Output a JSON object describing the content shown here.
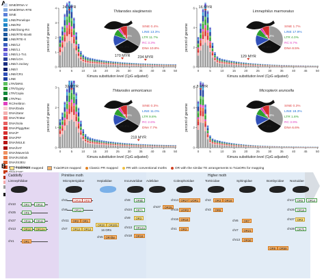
{
  "panel_a": {
    "letter": "A",
    "legend": [
      {
        "label": "SINE/tRNA-V",
        "color": "#c8d8f0"
      },
      {
        "label": "SINE/tRNA-RTE",
        "color": "#7fa8e0"
      },
      {
        "label": "SINE",
        "color": "#5b7fd8"
      },
      {
        "label": "LINE/Penelope",
        "color": "#3aa0d8"
      },
      {
        "label": "LINE/R2",
        "color": "#1d86c8"
      },
      {
        "label": "LINE/Dong-R4",
        "color": "#2a6eb0"
      },
      {
        "label": "LINE/RTE-BovB",
        "color": "#1e5aa0"
      },
      {
        "label": "LINE/RTE-X",
        "color": "#0f4a8c"
      },
      {
        "label": "LINE/L2",
        "color": "#3c5fc0"
      },
      {
        "label": "LINE/L1",
        "color": "#5c4cc8"
      },
      {
        "label": "LINE/L1-Tx1",
        "color": "#6e6ee0"
      },
      {
        "label": "LINE/LOA",
        "color": "#2b3f99"
      },
      {
        "label": "LINE/I-Jockey",
        "color": "#1a2e80"
      },
      {
        "label": "LINE/I",
        "color": "#101e6a"
      },
      {
        "label": "LINE/CR1",
        "color": "#3050b8"
      },
      {
        "label": "LINE",
        "color": "#2040a0"
      },
      {
        "label": "LTR/DIRS",
        "color": "#5cc05c"
      },
      {
        "label": "LTR/Gypsy",
        "color": "#2ea02e"
      },
      {
        "label": "LTR/Copia",
        "color": "#128a3a"
      },
      {
        "label": "LTR/Pao",
        "color": "#0a6e2a"
      },
      {
        "label": "RC/Helitron",
        "color": "#e040c0"
      },
      {
        "label": "DNA/Dada",
        "color": "#f8d0d0"
      },
      {
        "label": "DNA/Zator",
        "color": "#f4b0b0"
      },
      {
        "label": "DNA/TcMar",
        "color": "#f08080"
      },
      {
        "label": "DNA/Sola",
        "color": "#e86060"
      },
      {
        "label": "DNA/PiggyBac",
        "color": "#e04040"
      },
      {
        "label": "DNA/P",
        "color": "#d83030"
      },
      {
        "label": "DNA/PIF",
        "color": "#c82020"
      },
      {
        "label": "DNA/MULE",
        "color": "#b81818"
      },
      {
        "label": "DNA/hAT",
        "color": "#a81010"
      },
      {
        "label": "DNA/Maverick",
        "color": "#f09060"
      },
      {
        "label": "DNA/Kolobok",
        "color": "#e87848"
      },
      {
        "label": "DNA/IS3EU",
        "color": "#e06030"
      },
      {
        "label": "DNA/Harbinger",
        "color": "#d84820"
      },
      {
        "label": "DNA/CMC",
        "color": "#c83810"
      },
      {
        "label": "DNA/Academ",
        "color": "#b02808"
      },
      {
        "label": "DNA",
        "color": "#f4a8a8"
      },
      {
        "label": "Unknown",
        "color": "#9a9a9a"
      },
      {
        "label": "Unmapped",
        "color": "#111111"
      }
    ],
    "axis_x_label": "Kimura substitution level (CpG adjusted)",
    "axis_y_label": "percent of genome",
    "charts": [
      {
        "species": "Thitarodes xiaojinensis",
        "peaks": [
          {
            "label": "24 MYR",
            "k": 4
          },
          {
            "label": "170 MYR",
            "k": 27
          },
          {
            "label": "234 MYR",
            "k": 37
          }
        ],
        "ymax": 4,
        "yticks": [
          "0",
          "1",
          "2",
          "3",
          "4"
        ],
        "pie": {
          "unknown": "34.4%",
          "dna_u": "26.3%",
          "sine": "SINE 0.4%",
          "line": "LINE 13.3%",
          "ltr": "LTR 11.7%",
          "rc": "RC 3.3%",
          "dna": "DNA 10.8%"
        }
      },
      {
        "species": "Limnephilus marmoratus",
        "peaks": [
          {
            "label": "16 MYR",
            "k": 3
          },
          {
            "label": "129 MYR",
            "k": 21
          }
        ],
        "ymax": 6,
        "yticks": [
          "0",
          "2",
          "4",
          "6"
        ],
        "pie": {
          "unknown": "38.2%",
          "dna_u": "20.5%",
          "sine": "SINE 1.7%",
          "line": "LINE 17.9%",
          "ltr": "LTR 4.0%",
          "rc": "RC 8.7%",
          "dna": "DNA 8.5%"
        }
      },
      {
        "species": "Thitarodes armoricanus",
        "peaks": [
          {
            "label": "32 MYR",
            "k": 5
          },
          {
            "label": "218 MYR",
            "k": 34
          }
        ],
        "ymax": 3,
        "yticks": [
          "0",
          "1",
          "2",
          "3"
        ],
        "pie": {
          "unknown": "38.6%",
          "dna_u": "28.4%",
          "sine": "SINE 0.3%",
          "line": "LINE 11.0%",
          "ltr": "LTR 9.8%",
          "rc": "RC 2.6%",
          "dna": "DNA 7.7%"
        }
      },
      {
        "species": "Micropterix aruncella",
        "peaks": [
          {
            "label": "< 8 MYR",
            "k": 1
          }
        ],
        "ymax": 6,
        "yticks": [
          "0",
          "2",
          "4",
          "6"
        ],
        "pie": {
          "unknown": "38.8%",
          "dna_u": "27.1%",
          "sine": "SINE 0.3%",
          "line": "LINE 18.3%",
          "ltr": "LTR 1.8%",
          "rc": "RC 3.9%",
          "dna": "DNA 6.6%"
        }
      }
    ],
    "xticks": [
      "0",
      "5",
      "10",
      "15",
      "20",
      "25",
      "30",
      "35",
      "40",
      "45",
      "50"
    ]
  },
  "panel_b": {
    "letter": "B",
    "legend": [
      {
        "label": "TxiaOR18 mapped",
        "type": "box",
        "color": "#fbe48c"
      },
      {
        "label": "TxiaOR19 mapped",
        "type": "box",
        "color": "#f7b36b"
      },
      {
        "label": "Classic PR mapped",
        "type": "dot",
        "color": "#e2801e"
      },
      {
        "label": "PR with conventional moths",
        "type": "dot",
        "color": "#f0c040"
      },
      {
        "label": "OR with the similar TE arrangements to TxiaORs for mapping",
        "type": "dot",
        "color": "#d04020"
      }
    ],
    "groups": [
      "Caddisfly",
      "Primitive moth",
      "Higher moth"
    ],
    "taxa": [
      "Limnephilidae",
      "Micropterigidae",
      "Hepialidae",
      "Incurvariidae",
      "Adelidae",
      "Coleophoridae",
      "Tortricidae",
      "Sphingidae",
      "Bombycidae",
      "Noctuidae"
    ],
    "rows": [
      {
        "chr": "chr10",
        "boxes": [
          "OR4",
          "OR4c"
        ]
      },
      {
        "chr": "chr25",
        "boxes": [
          "OR5"
        ]
      },
      {
        "chr": "chr27",
        "boxes": [
          "OR4e",
          "OR4d"
        ]
      },
      {
        "chr": "chr13",
        "boxes": [
          "OR10",
          "OR12e"
        ]
      },
      {
        "chr": "chr1",
        "boxes": [
          "OR1"
        ]
      }
    ],
    "hepialidae": {
      "chr": "16 ORs",
      "extra": "OR-like",
      "chr2": "chr5"
    },
    "boxes_misc": [
      "OR4c",
      "OR8",
      "OR12",
      "OR2",
      "OR1",
      "OR12",
      "OR12",
      "OR20",
      "OR20b",
      "OR8b",
      "OR7c",
      "OR3",
      "OR12a",
      "OR18",
      "OR29",
      "OR27",
      "UOR1",
      "UOR2",
      "OR18",
      "OR3",
      "OR3",
      "OR16",
      "OR6",
      "OR7",
      "OR21",
      "OR3d",
      "OR5",
      "OR14",
      "OR18",
      "OR3",
      "OR7b",
      "OR8",
      "OR59"
    ],
    "chr_misc": [
      "chr2",
      "chr6",
      "chr11",
      "chr7",
      "chr8",
      "chr24",
      "chr9",
      "chr13",
      "chr18",
      "chr27",
      "chr14",
      "chr15",
      "chr16",
      "chr1",
      "chr2",
      "chr3",
      "chr6",
      "chr7",
      "chr13",
      "chr17",
      "chr25",
      "chr27",
      "chr28"
    ]
  }
}
